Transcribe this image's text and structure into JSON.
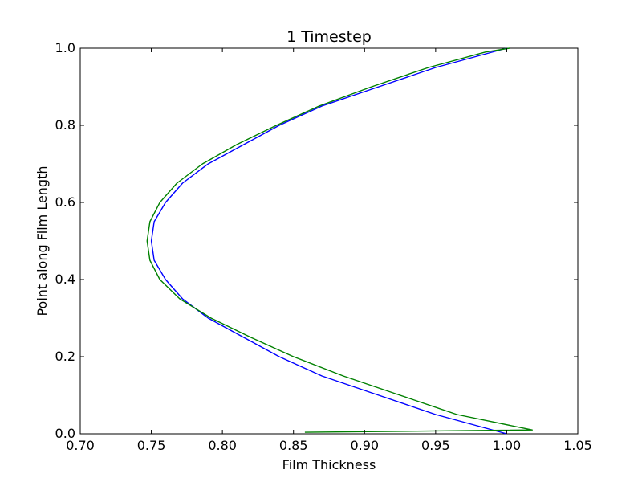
{
  "chart_data": {
    "type": "line",
    "title": "1 Timestep",
    "xlabel": "Film Thickness",
    "ylabel": "Point along Film Length",
    "xlim": [
      0.7,
      1.05
    ],
    "ylim": [
      0.0,
      1.0
    ],
    "xticks": [
      "0.70",
      "0.75",
      "0.80",
      "0.85",
      "0.90",
      "0.95",
      "1.00",
      "1.05"
    ],
    "yticks": [
      "0.0",
      "0.2",
      "0.4",
      "0.6",
      "0.8",
      "1.0"
    ],
    "grid": false,
    "legend": "none",
    "series": [
      {
        "color": "#0000ff",
        "points": [
          [
            1.0,
            0.0
          ],
          [
            0.95,
            0.05
          ],
          [
            0.91,
            0.1
          ],
          [
            0.87,
            0.15
          ],
          [
            0.84,
            0.2
          ],
          [
            0.815,
            0.25
          ],
          [
            0.79,
            0.3
          ],
          [
            0.772,
            0.35
          ],
          [
            0.76,
            0.4
          ],
          [
            0.752,
            0.45
          ],
          [
            0.75,
            0.5
          ],
          [
            0.752,
            0.55
          ],
          [
            0.76,
            0.6
          ],
          [
            0.772,
            0.65
          ],
          [
            0.79,
            0.7
          ],
          [
            0.815,
            0.75
          ],
          [
            0.84,
            0.8
          ],
          [
            0.87,
            0.85
          ],
          [
            0.91,
            0.9
          ],
          [
            0.95,
            0.95
          ],
          [
            1.0,
            1.0
          ]
        ]
      },
      {
        "color": "#008000",
        "points": [
          [
            0.858,
            0.004
          ],
          [
            1.018,
            0.01
          ],
          [
            0.965,
            0.05
          ],
          [
            0.925,
            0.1
          ],
          [
            0.885,
            0.15
          ],
          [
            0.85,
            0.2
          ],
          [
            0.82,
            0.25
          ],
          [
            0.792,
            0.3
          ],
          [
            0.77,
            0.35
          ],
          [
            0.756,
            0.4
          ],
          [
            0.749,
            0.45
          ],
          [
            0.747,
            0.5
          ],
          [
            0.749,
            0.55
          ],
          [
            0.756,
            0.6
          ],
          [
            0.768,
            0.65
          ],
          [
            0.786,
            0.7
          ],
          [
            0.81,
            0.75
          ],
          [
            0.838,
            0.8
          ],
          [
            0.868,
            0.85
          ],
          [
            0.905,
            0.9
          ],
          [
            0.945,
            0.95
          ],
          [
            0.985,
            0.99
          ],
          [
            1.002,
            1.0
          ]
        ]
      }
    ]
  }
}
